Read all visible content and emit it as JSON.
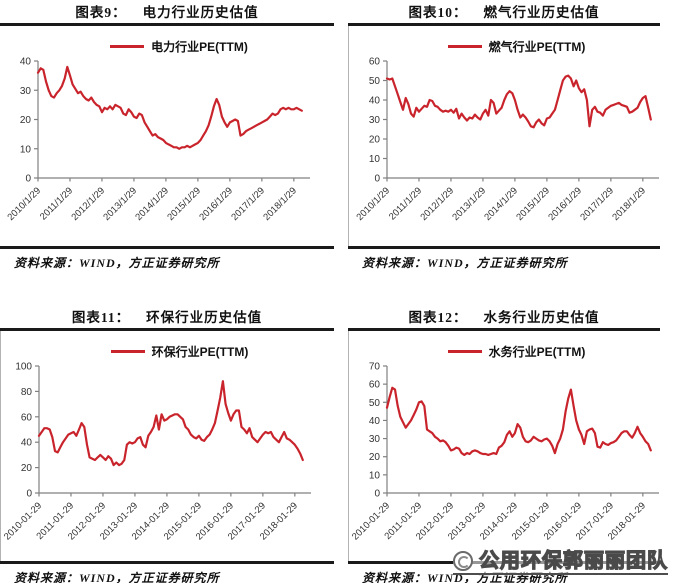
{
  "page": {
    "source_label": "资料来源：WIND，方正证券研究所",
    "watermark": "公用环保郭丽丽团队"
  },
  "colors": {
    "line": "#C9242C",
    "axis": "#808080",
    "rule": "#1A1A1A"
  },
  "chart_data": [
    {
      "type": "line",
      "panel_label": "图表9：",
      "title": "电力行业历史估值",
      "legend": "电力行业PE(TTM)",
      "grid": false,
      "legend_position": "top",
      "ylim": [
        0,
        40
      ],
      "yticks": [
        0,
        10,
        20,
        30,
        40
      ],
      "x_tick_labels": [
        "2010/1/29",
        "2011/1/29",
        "2012/1/29",
        "2013/1/29",
        "2014/1/29",
        "2015/1/29",
        "2016/1/29",
        "2017/1/29",
        "2018/1/29"
      ],
      "x_months_per_tick": 12,
      "values": [
        36,
        37.5,
        37,
        33,
        30,
        28,
        27.5,
        29,
        30,
        31.5,
        34,
        38,
        35,
        32,
        30.5,
        29,
        29.5,
        28,
        27,
        26.5,
        27.5,
        26,
        25,
        24.5,
        22.5,
        24,
        23.5,
        24.5,
        23.5,
        25,
        24.5,
        24,
        22,
        21.5,
        23.5,
        22.5,
        21,
        20.5,
        22,
        21.5,
        19,
        17.5,
        16,
        14.5,
        15,
        14,
        13.5,
        13,
        12,
        11.5,
        11,
        10.5,
        10.5,
        10,
        10.5,
        10.5,
        11,
        10.5,
        11,
        11.5,
        12,
        13,
        14.5,
        16,
        18,
        21,
        24.5,
        27,
        25,
        21,
        19,
        17.5,
        19,
        19.5,
        20,
        19.5,
        14.5,
        15,
        16,
        16.5,
        17,
        17.5,
        18,
        18.5,
        19,
        19.5,
        20,
        21,
        22,
        21.5,
        22,
        23.5,
        24,
        23.5,
        24,
        23.5,
        23.5,
        24,
        23.5,
        23
      ]
    },
    {
      "type": "line",
      "panel_label": "图表10：",
      "title": "燃气行业历史估值",
      "legend": "燃气行业PE(TTM)",
      "grid": false,
      "legend_position": "top",
      "ylim": [
        0,
        60
      ],
      "yticks": [
        0,
        10,
        20,
        30,
        40,
        50,
        60
      ],
      "x_tick_labels": [
        "2010/1/29",
        "2011/1/29",
        "2012/1/29",
        "2013/1/29",
        "2014/1/29",
        "2015/1/29",
        "2016/1/29",
        "2017/1/29",
        "2018/1/29"
      ],
      "x_months_per_tick": 12,
      "values": [
        51,
        50.5,
        51,
        47,
        43,
        39,
        35,
        41,
        38,
        33,
        31.5,
        36,
        34,
        35.5,
        37,
        36.5,
        40,
        39.5,
        37,
        36.5,
        35,
        34,
        34.5,
        34,
        35,
        33.5,
        35.5,
        30.5,
        33,
        31,
        29.5,
        31,
        30.5,
        32.5,
        31,
        30,
        33,
        35,
        32,
        40,
        38.5,
        33,
        34.5,
        36,
        40,
        43,
        44.5,
        43.5,
        40,
        35,
        31,
        32.5,
        31,
        29,
        26.5,
        26,
        28.5,
        30,
        28,
        27,
        30.5,
        31,
        33,
        35,
        40,
        45,
        50,
        52,
        52.5,
        51,
        47,
        50,
        46,
        44,
        45.5,
        40,
        26.5,
        35,
        36.5,
        34,
        33.5,
        32,
        35,
        36,
        37,
        37.5,
        38,
        38.5,
        37.5,
        37,
        36.5,
        33.5,
        34,
        35,
        36,
        39,
        41,
        42,
        36,
        30
      ]
    },
    {
      "type": "line",
      "panel_label": "图表11：",
      "title": "环保行业历史估值",
      "legend": "环保行业PE(TTM)",
      "grid": false,
      "legend_position": "top",
      "ylim": [
        0,
        100
      ],
      "yticks": [
        0,
        20,
        40,
        60,
        80,
        100
      ],
      "x_tick_labels": [
        "2010-01-29",
        "2011-01-29",
        "2012-01-29",
        "2013-01-29",
        "2014-01-29",
        "2015-01-29",
        "2016-01-29",
        "2017-01-29",
        "2018-01-29"
      ],
      "x_months_per_tick": 12,
      "values": [
        45,
        48,
        51,
        51,
        50,
        44,
        33,
        32,
        36,
        40,
        43,
        46,
        47,
        48,
        45,
        50,
        55,
        52,
        38,
        28,
        27,
        26,
        28,
        30,
        28,
        26,
        29,
        27,
        22,
        24,
        22,
        23,
        26,
        38,
        40,
        39,
        40,
        43,
        44,
        38,
        36,
        45,
        48,
        52,
        61,
        50,
        62,
        57,
        58,
        60,
        61,
        62,
        62,
        60,
        58,
        52,
        50,
        46,
        44,
        43,
        45,
        42,
        41,
        44,
        46,
        50,
        55,
        65,
        75,
        88,
        70,
        63,
        57,
        62,
        65,
        65,
        52,
        50,
        47,
        51,
        44,
        42,
        40,
        43,
        46,
        48,
        47,
        48,
        44,
        42,
        40,
        44,
        48,
        43,
        42,
        40,
        38,
        35,
        31,
        26
      ]
    },
    {
      "type": "line",
      "panel_label": "图表12：",
      "title": "水务行业历史估值",
      "legend": "水务行业PE(TTM)",
      "grid": false,
      "legend_position": "top",
      "ylim": [
        0,
        70
      ],
      "yticks": [
        0,
        10,
        20,
        30,
        40,
        50,
        60,
        70
      ],
      "x_tick_labels": [
        "2010-01-29",
        "2011-01-29",
        "2012-01-29",
        "2013-01-29",
        "2014-01-29",
        "2015-01-29",
        "2016-01-29",
        "2017-01-29",
        "2018-01-29"
      ],
      "x_months_per_tick": 12,
      "values": [
        47,
        53,
        58,
        57,
        48,
        42,
        39,
        36,
        38,
        40,
        43,
        46,
        50,
        50.5,
        48,
        35,
        34,
        33,
        31,
        30,
        28.5,
        29,
        28,
        26,
        23.5,
        24,
        25,
        24.5,
        22,
        21,
        22,
        21.5,
        23,
        23.5,
        23,
        22,
        21.5,
        21.5,
        21,
        21.5,
        22,
        21.5,
        25,
        26,
        28,
        32,
        34,
        31,
        33,
        38,
        36,
        31,
        28.5,
        28,
        29,
        31,
        30,
        29,
        28.5,
        29.5,
        30,
        28.5,
        26,
        22,
        27,
        30,
        35,
        45,
        52,
        57,
        48,
        40,
        35,
        32,
        27,
        34,
        35,
        35.5,
        33,
        25.5,
        25,
        28,
        27,
        26.5,
        27.5,
        28,
        29,
        31,
        33,
        34,
        34,
        32,
        30.5,
        33,
        36.5,
        33,
        31,
        28.5,
        27,
        23.5
      ]
    }
  ]
}
